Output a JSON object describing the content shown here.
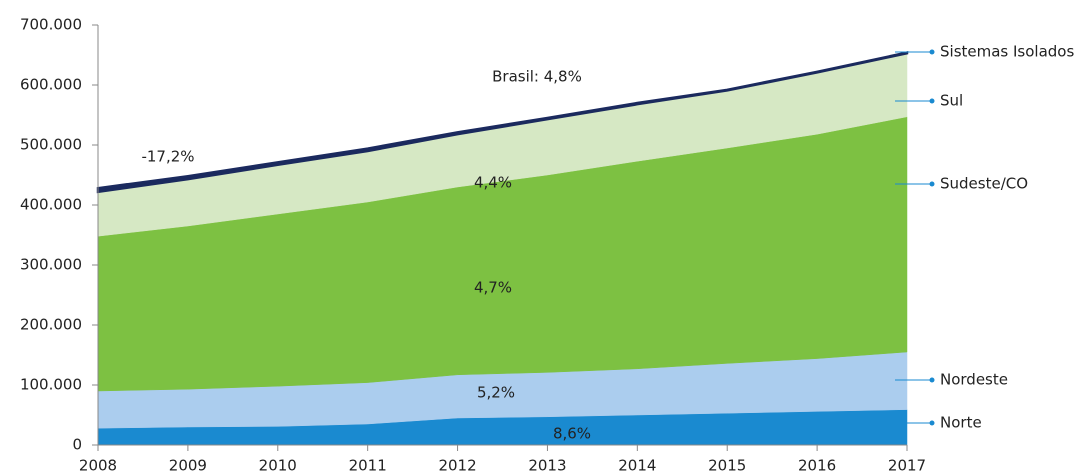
{
  "chart_data": {
    "type": "area",
    "stacked": true,
    "x": [
      2008,
      2009,
      2010,
      2011,
      2012,
      2013,
      2014,
      2015,
      2016,
      2017
    ],
    "xlim": [
      2008,
      2017
    ],
    "xticks": [
      2008,
      2009,
      2010,
      2011,
      2012,
      2013,
      2014,
      2015,
      2016,
      2017
    ],
    "ylim": [
      0,
      700000
    ],
    "yticks": [
      0,
      {
        "value": 100000,
        "label": "100.000"
      },
      {
        "value": 200000,
        "label": "200.000"
      },
      {
        "value": 300000,
        "label": "300.000"
      },
      {
        "value": 400000,
        "label": "400.000"
      },
      {
        "value": 500000,
        "label": "500.000"
      },
      {
        "value": 600000,
        "label": "600.000"
      },
      {
        "value": 700000,
        "label": "700.000"
      }
    ],
    "series": [
      {
        "name": "Norte",
        "color": "#1a8ad0",
        "values": [
          28000,
          30000,
          31000,
          35000,
          45000,
          47000,
          50000,
          53000,
          56000,
          59000
        ]
      },
      {
        "name": "Nordeste",
        "color": "#abcdee",
        "values": [
          62000,
          63000,
          67000,
          69000,
          72000,
          74000,
          77000,
          83000,
          88000,
          96000
        ]
      },
      {
        "name": "Sudeste/CO",
        "color": "#7dc142",
        "values": [
          258000,
          272000,
          287000,
          301000,
          313000,
          329000,
          346000,
          359000,
          374000,
          392000
        ]
      },
      {
        "name": "Sul",
        "color": "#d6e8c4",
        "values": [
          74000,
          78000,
          82000,
          85000,
          88000,
          93000,
          95000,
          96000,
          103000,
          106000
        ]
      },
      {
        "name": "Sistemas Isolados",
        "color": "#1b2a5e",
        "values": [
          6000,
          5000,
          4000,
          4000,
          3000,
          2000,
          2000,
          1000,
          1000,
          1000
        ]
      }
    ],
    "annotations": [
      "Brasil: 4,8%",
      "-17,2%",
      "4,4%",
      "4,7%",
      "5,2%",
      "8,6%"
    ]
  }
}
